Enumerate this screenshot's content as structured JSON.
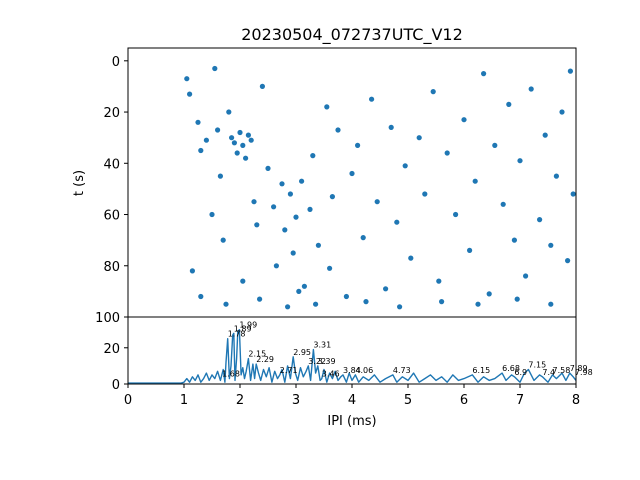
{
  "colors": {
    "series": "#1f77b4",
    "axes": "#000000",
    "background": "#ffffff"
  },
  "chart_data": [
    {
      "type": "scatter",
      "title": "20230504_072737UTC_V12",
      "xlabel": "",
      "ylabel": "t (s)",
      "xlim": [
        0,
        8
      ],
      "ylim": [
        100,
        -5
      ],
      "y_inverted": true,
      "x_ticks_shown": false,
      "yticks": [
        0,
        20,
        40,
        60,
        80,
        100
      ],
      "ytick_labels": [
        "0",
        "20",
        "40",
        "60",
        "80",
        "100"
      ],
      "marker_color": "#1f77b4",
      "grid": false,
      "points": [
        [
          1.05,
          7
        ],
        [
          1.1,
          13
        ],
        [
          1.25,
          24
        ],
        [
          1.3,
          35
        ],
        [
          1.4,
          31
        ],
        [
          1.55,
          3
        ],
        [
          1.6,
          27
        ],
        [
          1.65,
          45
        ],
        [
          1.7,
          70
        ],
        [
          1.8,
          20
        ],
        [
          1.85,
          30
        ],
        [
          1.9,
          32
        ],
        [
          1.95,
          36
        ],
        [
          2.0,
          28
        ],
        [
          2.05,
          33
        ],
        [
          2.1,
          38
        ],
        [
          2.15,
          29
        ],
        [
          2.2,
          31
        ],
        [
          2.25,
          55
        ],
        [
          2.3,
          64
        ],
        [
          2.4,
          10
        ],
        [
          2.5,
          42
        ],
        [
          2.6,
          57
        ],
        [
          2.75,
          48
        ],
        [
          2.8,
          66
        ],
        [
          2.9,
          52
        ],
        [
          2.95,
          75
        ],
        [
          3.0,
          61
        ],
        [
          3.1,
          47
        ],
        [
          3.15,
          88
        ],
        [
          3.25,
          58
        ],
        [
          3.3,
          37
        ],
        [
          3.4,
          72
        ],
        [
          3.55,
          18
        ],
        [
          3.6,
          81
        ],
        [
          3.75,
          27
        ],
        [
          3.9,
          92
        ],
        [
          4.0,
          44
        ],
        [
          4.1,
          33
        ],
        [
          4.2,
          69
        ],
        [
          4.35,
          15
        ],
        [
          4.45,
          55
        ],
        [
          4.6,
          89
        ],
        [
          4.7,
          26
        ],
        [
          4.8,
          63
        ],
        [
          4.95,
          41
        ],
        [
          5.05,
          77
        ],
        [
          5.2,
          30
        ],
        [
          5.3,
          52
        ],
        [
          5.45,
          12
        ],
        [
          5.55,
          86
        ],
        [
          5.7,
          36
        ],
        [
          5.85,
          60
        ],
        [
          6.0,
          23
        ],
        [
          6.1,
          74
        ],
        [
          6.2,
          47
        ],
        [
          6.35,
          5
        ],
        [
          6.45,
          91
        ],
        [
          6.55,
          33
        ],
        [
          6.7,
          56
        ],
        [
          6.8,
          17
        ],
        [
          6.9,
          70
        ],
        [
          7.0,
          39
        ],
        [
          7.1,
          84
        ],
        [
          7.2,
          11
        ],
        [
          7.35,
          62
        ],
        [
          7.45,
          29
        ],
        [
          7.55,
          95
        ],
        [
          7.65,
          45
        ],
        [
          7.75,
          20
        ],
        [
          7.85,
          78
        ],
        [
          7.95,
          52
        ],
        [
          1.15,
          82
        ],
        [
          1.3,
          92
        ],
        [
          1.5,
          60
        ],
        [
          1.75,
          95
        ],
        [
          2.05,
          86
        ],
        [
          2.35,
          93
        ],
        [
          2.65,
          80
        ],
        [
          2.85,
          96
        ],
        [
          3.05,
          90
        ],
        [
          3.35,
          95
        ],
        [
          3.65,
          53
        ],
        [
          4.25,
          94
        ],
        [
          4.85,
          96
        ],
        [
          5.6,
          94
        ],
        [
          6.25,
          95
        ],
        [
          6.95,
          93
        ],
        [
          7.55,
          72
        ],
        [
          7.9,
          4
        ]
      ]
    },
    {
      "type": "line",
      "title": "",
      "xlabel": "IPI (ms)",
      "ylabel": "",
      "xlim": [
        0,
        8
      ],
      "ylim": [
        0,
        37
      ],
      "xticks": [
        0,
        1,
        2,
        3,
        4,
        5,
        6,
        7,
        8
      ],
      "xtick_labels": [
        "0",
        "1",
        "2",
        "3",
        "4",
        "5",
        "6",
        "7",
        "8"
      ],
      "yticks": [
        0,
        10,
        20,
        30
      ],
      "ytick_labels": [
        "0",
        "10",
        "20",
        "30"
      ],
      "line_color": "#1f77b4",
      "grid": false,
      "peaks": [
        {
          "x": 1.78,
          "y": 25,
          "label": "1.78"
        },
        {
          "x": 1.89,
          "y": 28,
          "label": "1.89"
        },
        {
          "x": 1.99,
          "y": 30,
          "label": "1.99"
        },
        {
          "x": 2.15,
          "y": 14,
          "label": "2.15"
        },
        {
          "x": 2.29,
          "y": 11,
          "label": "2.29"
        },
        {
          "x": 2.95,
          "y": 15,
          "label": "2.95"
        },
        {
          "x": 3.22,
          "y": 10,
          "label": "3.22"
        },
        {
          "x": 3.31,
          "y": 19,
          "label": "3.31"
        },
        {
          "x": 3.39,
          "y": 10,
          "label": "3.39"
        },
        {
          "x": 4.06,
          "y": 5,
          "label": "4.06"
        },
        {
          "x": 4.73,
          "y": 5,
          "label": "4.73"
        },
        {
          "x": 6.15,
          "y": 5,
          "label": "6.15"
        },
        {
          "x": 6.68,
          "y": 6,
          "label": "6.68"
        },
        {
          "x": 7.15,
          "y": 8,
          "label": "7.15"
        },
        {
          "x": 7.89,
          "y": 6,
          "label": "7.89"
        }
      ],
      "minor_labels": [
        {
          "x": 1.68,
          "y": 3,
          "label": "1.68"
        },
        {
          "x": 2.71,
          "y": 5,
          "label": "2.71"
        },
        {
          "x": 3.46,
          "y": 3,
          "label": "3.46"
        },
        {
          "x": 3.84,
          "y": 5,
          "label": "3.84"
        },
        {
          "x": 6.9,
          "y": 4,
          "label": "6.9"
        },
        {
          "x": 7.4,
          "y": 4,
          "label": "7.4"
        },
        {
          "x": 7.58,
          "y": 5,
          "label": "7.58"
        },
        {
          "x": 7.98,
          "y": 4,
          "label": "7.98"
        }
      ],
      "x": [
        0.0,
        0.5,
        0.95,
        1.0,
        1.05,
        1.1,
        1.15,
        1.2,
        1.25,
        1.3,
        1.35,
        1.4,
        1.45,
        1.5,
        1.55,
        1.6,
        1.65,
        1.7,
        1.73,
        1.75,
        1.78,
        1.81,
        1.84,
        1.87,
        1.89,
        1.91,
        1.94,
        1.96,
        1.99,
        2.02,
        2.05,
        2.08,
        2.11,
        2.15,
        2.19,
        2.23,
        2.26,
        2.29,
        2.33,
        2.37,
        2.42,
        2.47,
        2.52,
        2.57,
        2.62,
        2.67,
        2.71,
        2.75,
        2.8,
        2.85,
        2.9,
        2.95,
        2.99,
        3.03,
        3.08,
        3.13,
        3.18,
        3.22,
        3.26,
        3.31,
        3.35,
        3.39,
        3.43,
        3.46,
        3.5,
        3.55,
        3.6,
        3.65,
        3.7,
        3.75,
        3.8,
        3.84,
        3.9,
        3.95,
        4.0,
        4.06,
        4.12,
        4.2,
        4.3,
        4.4,
        4.5,
        4.6,
        4.73,
        4.8,
        4.9,
        5.0,
        5.1,
        5.2,
        5.3,
        5.4,
        5.5,
        5.6,
        5.7,
        5.8,
        5.9,
        6.0,
        6.15,
        6.25,
        6.35,
        6.45,
        6.55,
        6.68,
        6.75,
        6.85,
        6.9,
        7.0,
        7.08,
        7.15,
        7.25,
        7.35,
        7.4,
        7.5,
        7.58,
        7.65,
        7.75,
        7.82,
        7.89,
        7.95,
        8.0
      ],
      "y": [
        0.5,
        0.5,
        0.5,
        1,
        3,
        1,
        4,
        2,
        5,
        1,
        3,
        6,
        2,
        5,
        3,
        7,
        2,
        8,
        1,
        12,
        25,
        3,
        10,
        27,
        28,
        2,
        14,
        29,
        30,
        5,
        9,
        3,
        7,
        14,
        2,
        11,
        3,
        11,
        6,
        2,
        8,
        4,
        9,
        1,
        7,
        3,
        5,
        8,
        1,
        10,
        3,
        15,
        6,
        2,
        9,
        4,
        7,
        10,
        2,
        19,
        6,
        10,
        2,
        3,
        8,
        1,
        6,
        3,
        7,
        2,
        4,
        5,
        1,
        6,
        2,
        5,
        1,
        4,
        2,
        5,
        1,
        3,
        5,
        1,
        4,
        2,
        6,
        1,
        3,
        5,
        2,
        4,
        1,
        5,
        2,
        3,
        5,
        1,
        4,
        2,
        3,
        6,
        2,
        5,
        4,
        1,
        6,
        8,
        2,
        5,
        4,
        1,
        5,
        3,
        6,
        2,
        6,
        4,
        2
      ]
    }
  ]
}
